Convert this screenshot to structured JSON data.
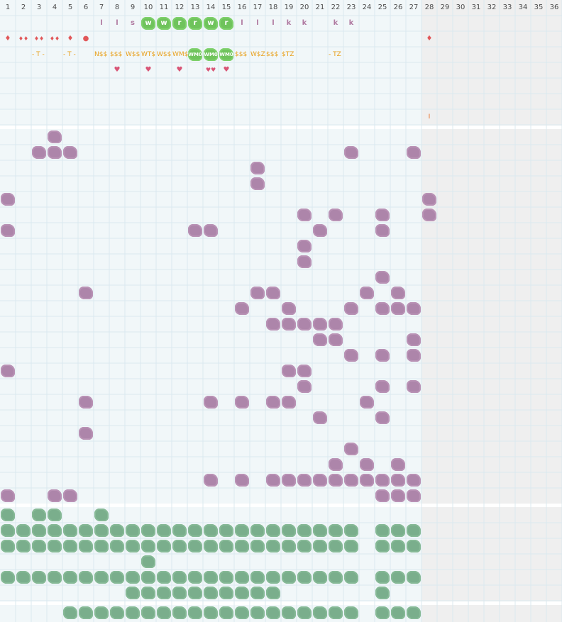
{
  "columns": [
    "1",
    "2",
    "3",
    "4",
    "5",
    "6",
    "7",
    "8",
    "9",
    "10",
    "11",
    "12",
    "13",
    "14",
    "15",
    "16",
    "17",
    "18",
    "19",
    "20",
    "21",
    "22",
    "23",
    "24",
    "25",
    "26",
    "27",
    "28",
    "29",
    "30",
    "31",
    "32",
    "33",
    "34",
    "35",
    "36"
  ],
  "colors": {
    "header_bg": "#f1f7f9",
    "grid_line": "#dbe9ef",
    "inactive_cols_bg": "#efefef",
    "purple_blob": "#ad85aa",
    "green_blob": "#7aae8c",
    "lime_tile": "#6fc35c",
    "drop_red": "#e15759",
    "heart_pink": "#d95576",
    "gold_text": "#e8a01c",
    "letter_mauve": "#b07aa1"
  },
  "top_panel": {
    "letters": [
      {
        "col": 7,
        "text": "l"
      },
      {
        "col": 8,
        "text": "l"
      },
      {
        "col": 9,
        "text": "s"
      },
      {
        "col": 16,
        "text": "l"
      },
      {
        "col": 17,
        "text": "l"
      },
      {
        "col": 18,
        "text": "l"
      },
      {
        "col": 19,
        "text": "k"
      },
      {
        "col": 20,
        "text": "k"
      },
      {
        "col": 22,
        "text": "k"
      },
      {
        "col": 23,
        "text": "k"
      }
    ],
    "lime_tiles": [
      {
        "col": 10,
        "row": 1,
        "text": "w"
      },
      {
        "col": 11,
        "row": 1,
        "text": "w"
      },
      {
        "col": 12,
        "row": 1,
        "text": "r"
      },
      {
        "col": 13,
        "row": 1,
        "text": "r"
      },
      {
        "col": 14,
        "row": 1,
        "text": "w"
      },
      {
        "col": 15,
        "row": 1,
        "text": "r"
      },
      {
        "col": 13,
        "row": 3,
        "text": "WM0"
      },
      {
        "col": 14,
        "row": 3,
        "text": "WM0"
      },
      {
        "col": 15,
        "row": 3,
        "text": "WM0"
      }
    ],
    "drops": [
      {
        "col": 1,
        "glyph": "♦"
      },
      {
        "col": 2,
        "glyph": "♦♦"
      },
      {
        "col": 3,
        "glyph": "♦♦"
      },
      {
        "col": 4,
        "glyph": "♦♦"
      },
      {
        "col": 5,
        "glyph": "♦"
      },
      {
        "col": 6,
        "glyph": "●"
      },
      {
        "col": 28,
        "glyph": "♦"
      }
    ],
    "codes": [
      {
        "col": 3,
        "text": "- T -"
      },
      {
        "col": 5,
        "text": "- T -"
      },
      {
        "col": 7,
        "text": "N$$"
      },
      {
        "col": 8,
        "text": "$$$"
      },
      {
        "col": 9,
        "text": "W$$"
      },
      {
        "col": 10,
        "text": "WT$"
      },
      {
        "col": 11,
        "text": "W$$"
      },
      {
        "col": 12,
        "text": "WM$"
      },
      {
        "col": 16,
        "text": "$$$"
      },
      {
        "col": 17,
        "text": "W$Z"
      },
      {
        "col": 18,
        "text": "$$$"
      },
      {
        "col": 19,
        "text": "$TZ"
      },
      {
        "col": 22,
        "text": "- TZ"
      }
    ],
    "hearts": [
      {
        "col": 8,
        "glyph": "♥"
      },
      {
        "col": 10,
        "glyph": "♥"
      },
      {
        "col": 12,
        "glyph": "♥"
      },
      {
        "col": 14,
        "glyph": "♥♥"
      },
      {
        "col": 15,
        "glyph": "♥"
      }
    ],
    "marker": {
      "col": 28,
      "text": "I"
    }
  },
  "purple_cells": [
    [
      4,
      1
    ],
    [
      3,
      2
    ],
    [
      4,
      2
    ],
    [
      5,
      2
    ],
    [
      23,
      2
    ],
    [
      27,
      2
    ],
    [
      17,
      3
    ],
    [
      17,
      4
    ],
    [
      1,
      5
    ],
    [
      28,
      5
    ],
    [
      20,
      6
    ],
    [
      22,
      6
    ],
    [
      25,
      6
    ],
    [
      28,
      6
    ],
    [
      1,
      7
    ],
    [
      13,
      7
    ],
    [
      14,
      7
    ],
    [
      21,
      7
    ],
    [
      25,
      7
    ],
    [
      20,
      8
    ],
    [
      20,
      9
    ],
    [
      25,
      10
    ],
    [
      6,
      11
    ],
    [
      17,
      11
    ],
    [
      18,
      11
    ],
    [
      24,
      11
    ],
    [
      26,
      11
    ],
    [
      16,
      12
    ],
    [
      19,
      12
    ],
    [
      23,
      12
    ],
    [
      25,
      12
    ],
    [
      26,
      12
    ],
    [
      27,
      12
    ],
    [
      18,
      13
    ],
    [
      19,
      13
    ],
    [
      20,
      13
    ],
    [
      21,
      13
    ],
    [
      22,
      13
    ],
    [
      21,
      14
    ],
    [
      22,
      14
    ],
    [
      27,
      14
    ],
    [
      23,
      15
    ],
    [
      25,
      15
    ],
    [
      27,
      15
    ],
    [
      1,
      16
    ],
    [
      19,
      16
    ],
    [
      20,
      16
    ],
    [
      20,
      17
    ],
    [
      25,
      17
    ],
    [
      27,
      17
    ],
    [
      6,
      18
    ],
    [
      14,
      18
    ],
    [
      16,
      18
    ],
    [
      18,
      18
    ],
    [
      19,
      18
    ],
    [
      24,
      18
    ],
    [
      21,
      19
    ],
    [
      25,
      19
    ],
    [
      6,
      20
    ],
    [
      23,
      21
    ],
    [
      22,
      22
    ],
    [
      24,
      22
    ],
    [
      26,
      22
    ],
    [
      14,
      23
    ],
    [
      16,
      23
    ],
    [
      18,
      23
    ],
    [
      19,
      23
    ],
    [
      20,
      23
    ],
    [
      21,
      23
    ],
    [
      22,
      23
    ],
    [
      23,
      23
    ],
    [
      24,
      23
    ],
    [
      25,
      23
    ],
    [
      26,
      23
    ],
    [
      27,
      23
    ],
    [
      1,
      24
    ],
    [
      4,
      24
    ],
    [
      5,
      24
    ],
    [
      25,
      24
    ],
    [
      26,
      24
    ],
    [
      27,
      24
    ]
  ],
  "green_rows": [
    {
      "row": 0,
      "cols": [
        1,
        3,
        4,
        7
      ]
    },
    {
      "row": 1,
      "cols": [
        1,
        2,
        3,
        4,
        5,
        6,
        7,
        8,
        9,
        10,
        11,
        12,
        13,
        14,
        15,
        16,
        17,
        18,
        19,
        20,
        21,
        22,
        23,
        25,
        26,
        27
      ]
    },
    {
      "row": 2,
      "cols": [
        1,
        2,
        3,
        4,
        5,
        6,
        7,
        8,
        9,
        10,
        11,
        12,
        13,
        14,
        15,
        16,
        17,
        18,
        19,
        20,
        21,
        22,
        23,
        25,
        26,
        27
      ]
    },
    {
      "row": 3,
      "cols": [
        10
      ]
    },
    {
      "row": 4,
      "cols": [
        1,
        2,
        3,
        4,
        5,
        6,
        7,
        8,
        9,
        10,
        11,
        12,
        13,
        14,
        15,
        16,
        17,
        18,
        19,
        20,
        21,
        22,
        23,
        25,
        26,
        27
      ]
    },
    {
      "row": 5,
      "cols": [
        9,
        10,
        11,
        12,
        13,
        14,
        15,
        16,
        17,
        18,
        25
      ]
    }
  ],
  "footer_cols": [
    5,
    6,
    7,
    8,
    9,
    10,
    11,
    12,
    13,
    14,
    15,
    16,
    17,
    18,
    19,
    20,
    21,
    22,
    23,
    25,
    26,
    27
  ]
}
